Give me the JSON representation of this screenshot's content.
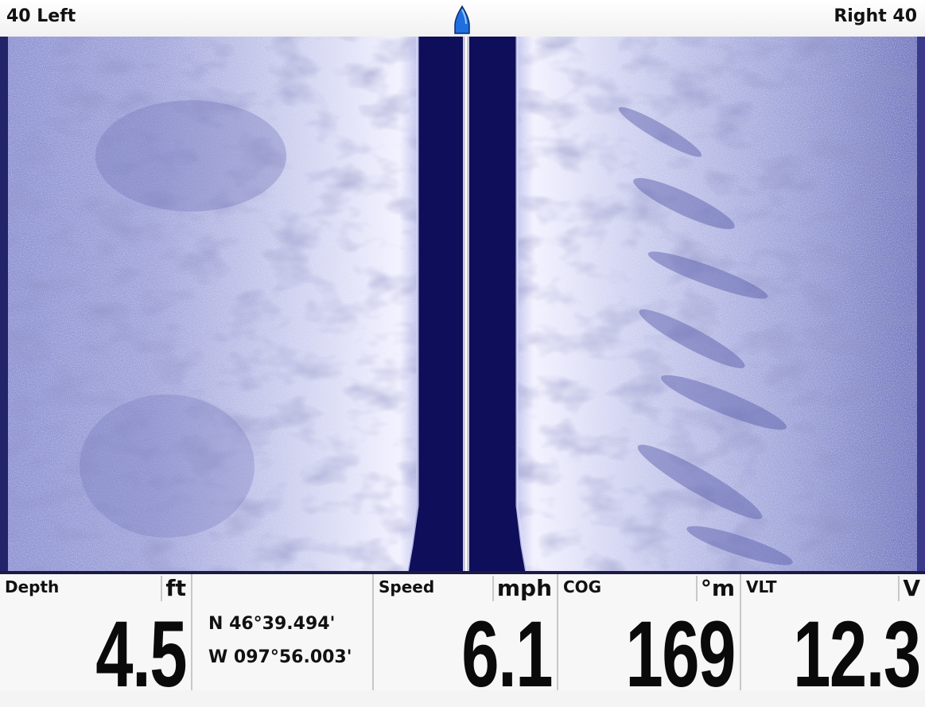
{
  "topbar": {
    "left_range": "40 Left",
    "right_range": "Right 40",
    "boat_icon": "boat-marker-icon",
    "boat_color": "#1e6fe0"
  },
  "sonar": {
    "view": "side-imaging",
    "background_color": "#7c82c4",
    "water_column_color": "#0e0e5a",
    "highlight_color": "#e8e8ff"
  },
  "readouts": {
    "depth": {
      "label": "Depth",
      "unit": "ft",
      "value": "4.5"
    },
    "position": {
      "lat": "N 46°39.494'",
      "lon": "W 097°56.003'"
    },
    "speed": {
      "label": "Speed",
      "unit": "mph",
      "value": "6.1"
    },
    "cog": {
      "label": "COG",
      "unit": "°m",
      "value": "169"
    },
    "voltage": {
      "label": "VLT",
      "unit": "V",
      "value": "12.3"
    }
  }
}
